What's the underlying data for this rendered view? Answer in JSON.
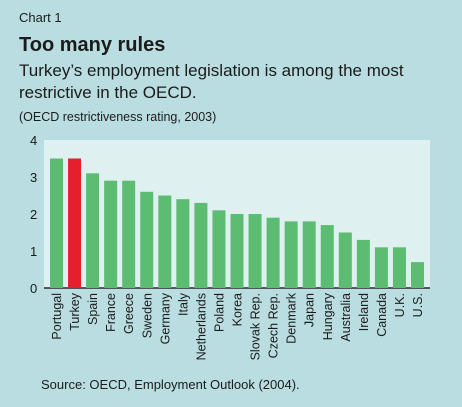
{
  "chart_number": "Chart 1",
  "title": "Too many rules",
  "subtitle": "Turkey’s employment legislation is among the most restrictive in the OECD.",
  "units_note": "(OECD restrictiveness rating, 2003)",
  "source": "Source: OECD, Employment Outlook (2004).",
  "colors": {
    "background": "#b9dde0",
    "plot_background": "#dff0f0",
    "bar": "#5cbc72",
    "highlight_bar": "#e4202e"
  },
  "chart_data": {
    "type": "bar",
    "title": "Too many rules",
    "xlabel": "",
    "ylabel": "",
    "ylim": [
      0,
      4
    ],
    "yticks": [
      0,
      1,
      2,
      3,
      4
    ],
    "grid": false,
    "highlight": "Turkey",
    "categories": [
      "Portugal",
      "Turkey",
      "Spain",
      "France",
      "Greece",
      "Sweden",
      "Germany",
      "Italy",
      "Netherlands",
      "Poland",
      "Korea",
      "Slovak Rep.",
      "Czech Rep.",
      "Denmark",
      "Japan",
      "Hungary",
      "Australia",
      "Ireland",
      "Canada",
      "U.K.",
      "U.S."
    ],
    "values": [
      3.5,
      3.5,
      3.1,
      2.9,
      2.9,
      2.6,
      2.5,
      2.4,
      2.3,
      2.1,
      2.0,
      2.0,
      1.9,
      1.8,
      1.8,
      1.7,
      1.5,
      1.3,
      1.1,
      1.1,
      0.7
    ]
  }
}
